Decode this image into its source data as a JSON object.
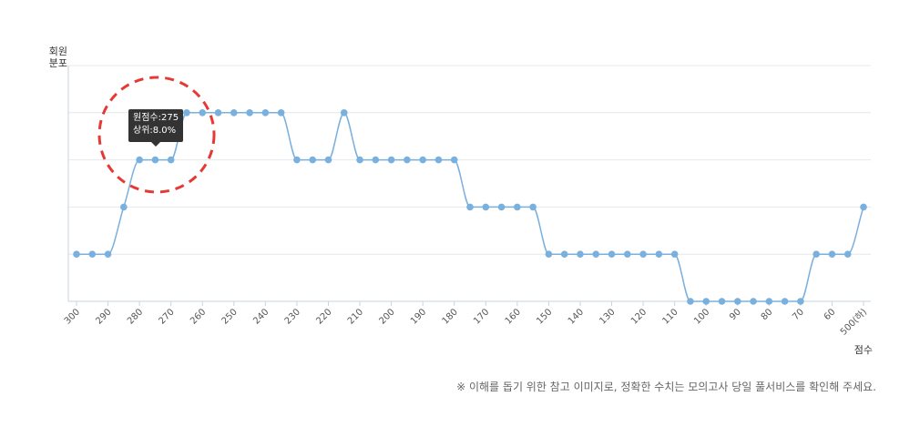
{
  "chart_data": {
    "type": "line",
    "ylabel_line1": "회원",
    "ylabel_line2": "분포",
    "xlabel": "점수",
    "x": [
      "300",
      "295",
      "290",
      "285",
      "280",
      "275",
      "270",
      "265",
      "260",
      "255",
      "250",
      "245",
      "240",
      "235",
      "230",
      "225",
      "220",
      "215",
      "210",
      "205",
      "200",
      "195",
      "190",
      "185",
      "180",
      "175",
      "170",
      "165",
      "160",
      "155",
      "150",
      "145",
      "140",
      "135",
      "130",
      "125",
      "120",
      "115",
      "110",
      "105",
      "100",
      "95",
      "90",
      "85",
      "80",
      "75",
      "70",
      "65",
      "60",
      "55",
      "500(하)"
    ],
    "tick_labels": [
      "300",
      "290",
      "280",
      "270",
      "260",
      "250",
      "240",
      "230",
      "220",
      "210",
      "200",
      "190",
      "180",
      "170",
      "160",
      "150",
      "140",
      "130",
      "120",
      "110",
      "100",
      "90",
      "80",
      "70",
      "60",
      "500(하)"
    ],
    "values": [
      1,
      1,
      1,
      2,
      3,
      3,
      3,
      4,
      4,
      4,
      4,
      4,
      4,
      4,
      3,
      3,
      3,
      4,
      3,
      3,
      3,
      3,
      3,
      3,
      3,
      2,
      2,
      2,
      2,
      2,
      1,
      1,
      1,
      1,
      1,
      1,
      1,
      1,
      1,
      0,
      0,
      0,
      0,
      0,
      0,
      0,
      0,
      1,
      1,
      1,
      2
    ],
    "ylim": [
      0,
      5
    ],
    "grid": true,
    "line_color": "#7ab0de"
  },
  "tooltip": {
    "line1": "원점수:275",
    "line2": "상위:8.0%"
  },
  "highlight_color": "#e53935",
  "note": "※ 이해를 돕기 위한 참고 이미지로, 정확한 수치는 모의고사 당일 풀서비스를 확인해 주세요."
}
